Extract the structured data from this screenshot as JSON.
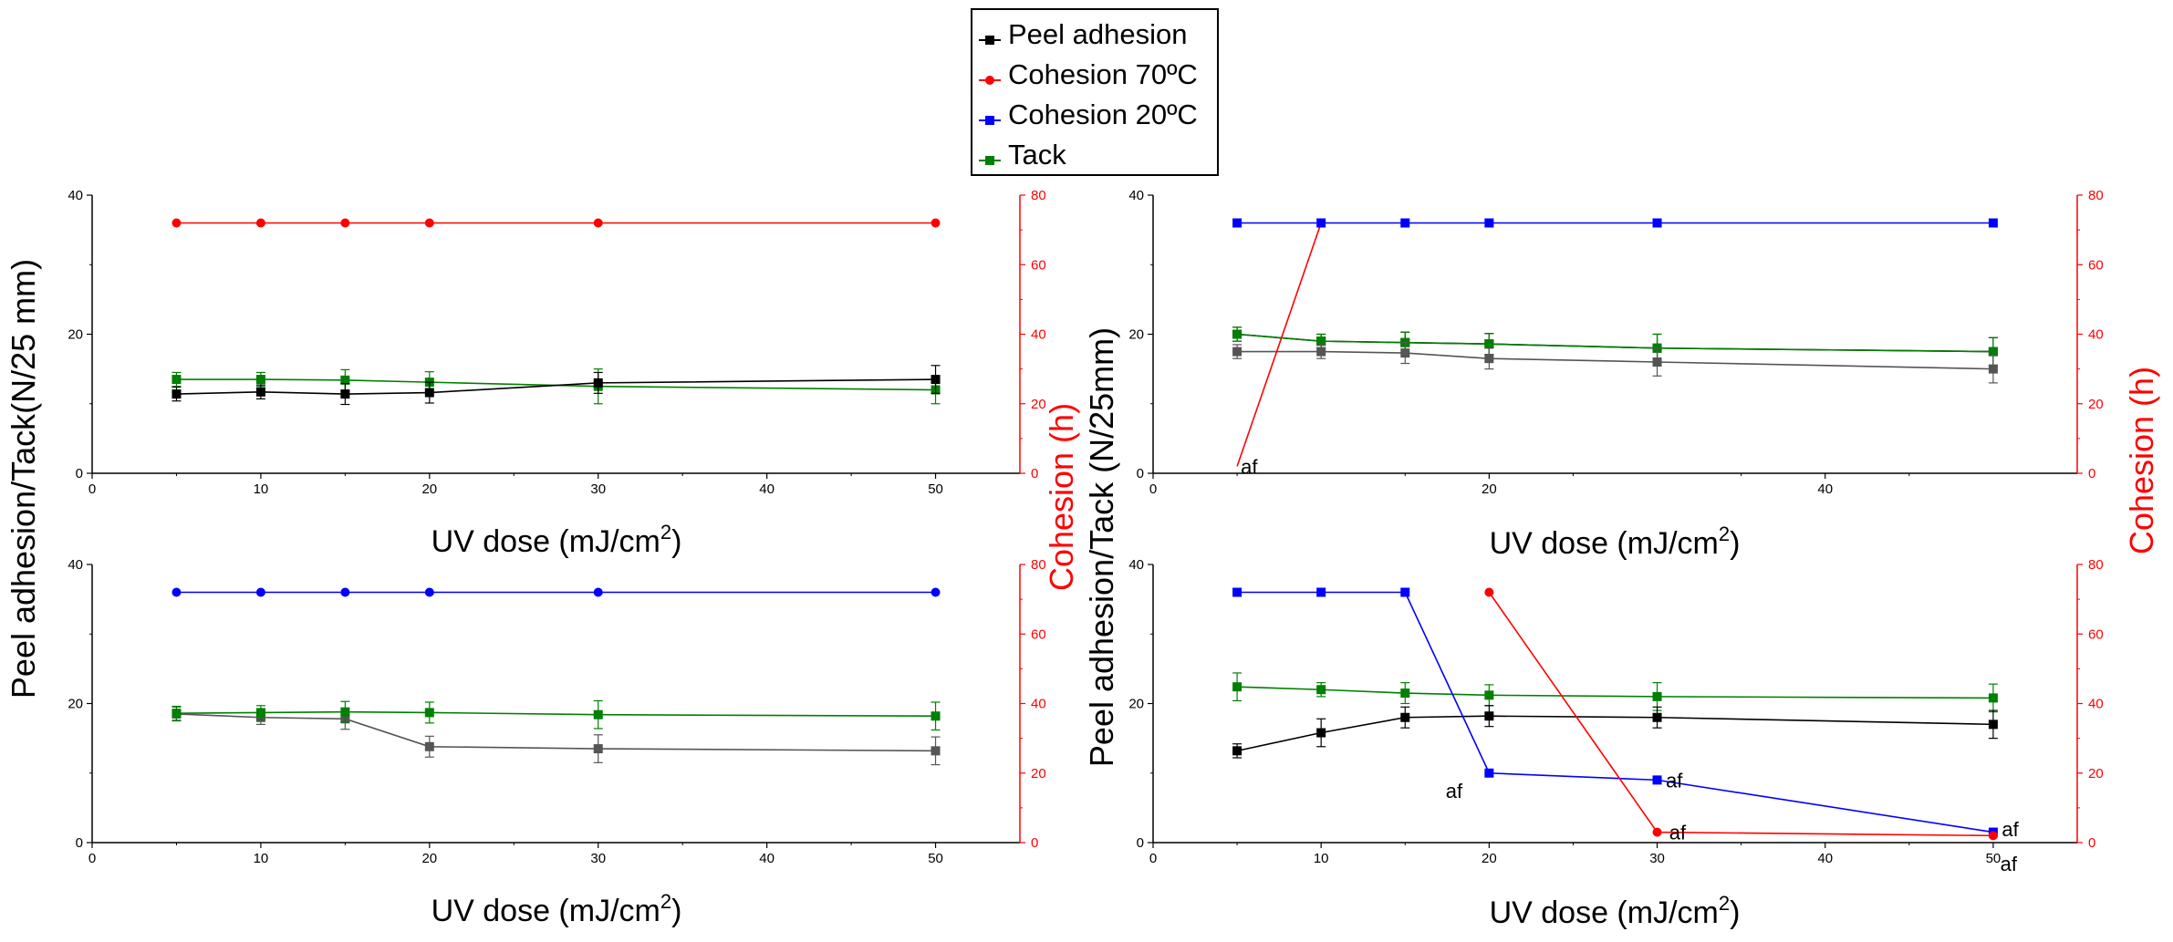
{
  "colors": {
    "peel": "#000000",
    "cohesion70": "#ff0000",
    "cohesion20": "#0000ff",
    "tack": "#008000",
    "grey": "#555555",
    "axis": "#000000",
    "right_axis": "#ff0000"
  },
  "legend": {
    "items": [
      {
        "label": "Peel adhesion",
        "color": "#000000"
      },
      {
        "label": "Cohesion 70ºC",
        "color": "#ff0000"
      },
      {
        "label": "Cohesion 20ºC",
        "color": "#0000ff"
      },
      {
        "label": "Tack",
        "color": "#008000"
      }
    ]
  },
  "labels": {
    "ylabel_left_top": "Peel adhesion/Tack(N/25 mm)",
    "ylabel_left_bottom": "Peel adhesion/Tack (N/25mm)",
    "ylabel_right_top": "Cohesion (h)",
    "ylabel_right_bottom": "Cohesion (h)",
    "xlabel_prefix": "UV dose (mJ/cm",
    "xlabel_sup": "2",
    "xlabel_suffix": ")"
  },
  "chart_data": [
    {
      "type": "line",
      "panel": "top-left",
      "xlabel": "UV dose (mJ/cm2)",
      "xlim": [
        0,
        55
      ],
      "xticks": [
        0,
        10,
        20,
        30,
        40,
        50
      ],
      "ylim": [
        0,
        40
      ],
      "yticks": [
        0,
        20,
        40
      ],
      "ylim_right": [
        0,
        80
      ],
      "yticks_right": [
        0,
        20,
        40,
        60,
        80
      ],
      "series": [
        {
          "name": "Tack",
          "color": "#008000",
          "marker": "square",
          "axis": "left",
          "x": [
            5,
            10,
            15,
            20,
            30,
            50
          ],
          "y": [
            13.5,
            13.5,
            13.4,
            13.1,
            12.5,
            12.0
          ],
          "err": [
            1.0,
            1.0,
            1.5,
            1.5,
            2.5,
            2.0
          ]
        },
        {
          "name": "Peel adhesion",
          "color": "#000000",
          "marker": "square",
          "axis": "left",
          "x": [
            5,
            10,
            15,
            20,
            30,
            50
          ],
          "y": [
            11.4,
            11.7,
            11.4,
            11.6,
            13.0,
            13.5
          ],
          "err": [
            1.0,
            1.0,
            1.5,
            1.5,
            1.5,
            2.0
          ]
        },
        {
          "name": "Cohesion 70ºC",
          "color": "#ff0000",
          "marker": "circle",
          "axis": "right",
          "x": [
            5,
            10,
            15,
            20,
            30,
            50
          ],
          "y": [
            72,
            72,
            72,
            72,
            72,
            72
          ]
        }
      ],
      "annotations": []
    },
    {
      "type": "line",
      "panel": "top-right",
      "xlabel": "UV dose (mJ/cm2)",
      "xlim": [
        0,
        55
      ],
      "xticks": [
        0,
        20,
        40
      ],
      "ylim": [
        0,
        40
      ],
      "yticks": [
        0,
        20,
        40
      ],
      "ylim_right": [
        0,
        80
      ],
      "yticks_right": [
        0,
        20,
        40,
        60,
        80
      ],
      "series": [
        {
          "name": "Peel adhesion",
          "color": "#000000",
          "marker": "square",
          "axis": "left",
          "x": [
            5,
            10,
            15,
            20,
            30,
            50
          ],
          "y": [
            20.0,
            19.0,
            18.8,
            18.6,
            18.0,
            17.5
          ],
          "err": [
            1.0,
            1.0,
            1.5,
            1.5,
            2.0,
            2.0
          ]
        },
        {
          "name": "Tack",
          "color": "#008000",
          "marker": "square",
          "axis": "left",
          "x": [
            5,
            10,
            15,
            20,
            30,
            50
          ],
          "y": [
            20.0,
            19.0,
            18.8,
            18.6,
            18.0,
            17.5
          ],
          "err": [
            1.0,
            1.0,
            1.5,
            1.5,
            2.0,
            2.0
          ]
        },
        {
          "name": "Peel adhesion (grey)",
          "color": "#555555",
          "marker": "square",
          "axis": "left",
          "x": [
            5,
            10,
            15,
            20,
            30,
            50
          ],
          "y": [
            17.5,
            17.5,
            17.3,
            16.5,
            16.0,
            15.0
          ],
          "err": [
            1.0,
            1.0,
            1.5,
            1.5,
            2.0,
            2.0
          ]
        },
        {
          "name": "Cohesion 70ºC",
          "color": "#ff0000",
          "marker": "none",
          "axis": "right",
          "x": [
            5,
            10
          ],
          "y": [
            2,
            72
          ]
        },
        {
          "name": "Cohesion 20ºC",
          "color": "#0000ff",
          "marker": "square",
          "axis": "right",
          "x": [
            5,
            10,
            15,
            20,
            30,
            50
          ],
          "y": [
            72,
            72,
            72,
            72,
            72,
            72
          ]
        }
      ],
      "annotations": [
        {
          "text": "af",
          "x": 5,
          "y": 2,
          "axis": "right"
        }
      ]
    },
    {
      "type": "line",
      "panel": "bottom-left",
      "xlabel": "UV dose (mJ/cm2)",
      "xlim": [
        0,
        55
      ],
      "xticks": [
        0,
        10,
        20,
        30,
        40,
        50
      ],
      "ylim": [
        0,
        40
      ],
      "yticks": [
        0,
        20,
        40
      ],
      "ylim_right": [
        0,
        80
      ],
      "yticks_right": [
        0,
        20,
        40,
        60,
        80
      ],
      "series": [
        {
          "name": "Peel adhesion",
          "color": "#555555",
          "marker": "square",
          "axis": "left",
          "x": [
            5,
            10,
            15,
            20,
            30,
            50
          ],
          "y": [
            18.5,
            18.0,
            17.8,
            13.8,
            13.5,
            13.2
          ],
          "err": [
            1.0,
            1.0,
            1.5,
            1.5,
            2.0,
            2.0
          ]
        },
        {
          "name": "Tack",
          "color": "#008000",
          "marker": "square",
          "axis": "left",
          "x": [
            5,
            10,
            15,
            20,
            30,
            50
          ],
          "y": [
            18.6,
            18.7,
            18.8,
            18.7,
            18.4,
            18.2
          ],
          "err": [
            1.0,
            1.0,
            1.5,
            1.5,
            2.0,
            2.0
          ]
        },
        {
          "name": "Cohesion 20ºC",
          "color": "#0000ff",
          "marker": "circle",
          "axis": "right",
          "x": [
            5,
            10,
            15,
            20,
            30,
            50
          ],
          "y": [
            72,
            72,
            72,
            72,
            72,
            72
          ]
        }
      ],
      "annotations": []
    },
    {
      "type": "line",
      "panel": "bottom-right",
      "xlabel": "UV dose (mJ/cm2)",
      "xlim": [
        0,
        55
      ],
      "xticks": [
        0,
        10,
        20,
        30,
        40,
        50
      ],
      "ylim": [
        0,
        40
      ],
      "yticks": [
        0,
        20,
        40
      ],
      "ylim_right": [
        0,
        80
      ],
      "yticks_right": [
        0,
        20,
        40,
        60,
        80
      ],
      "series": [
        {
          "name": "Tack",
          "color": "#008000",
          "marker": "square",
          "axis": "left",
          "x": [
            5,
            10,
            15,
            20,
            30,
            50
          ],
          "y": [
            22.4,
            22.0,
            21.5,
            21.2,
            21.0,
            20.8
          ],
          "err": [
            2.0,
            1.0,
            1.5,
            1.5,
            2.0,
            2.0
          ]
        },
        {
          "name": "Peel adhesion",
          "color": "#000000",
          "marker": "square",
          "axis": "left",
          "x": [
            5,
            10,
            15,
            20,
            30,
            50
          ],
          "y": [
            13.2,
            15.8,
            18.0,
            18.2,
            18.0,
            17.0
          ],
          "err": [
            1.0,
            2.0,
            1.5,
            1.5,
            1.5,
            2.0
          ]
        },
        {
          "name": "Cohesion 20ºC",
          "color": "#0000ff",
          "marker": "square",
          "axis": "right",
          "x": [
            5,
            10,
            15,
            20,
            30,
            50
          ],
          "y": [
            72,
            72,
            72,
            20,
            18,
            3
          ]
        },
        {
          "name": "Cohesion 70ºC",
          "color": "#ff0000",
          "marker": "circle",
          "axis": "right",
          "x": [
            20,
            30,
            50
          ],
          "y": [
            72,
            3,
            2
          ]
        }
      ],
      "annotations": [
        {
          "text": "af",
          "x": 17.2,
          "y": 15,
          "axis": "right"
        },
        {
          "text": "af",
          "x": 30.3,
          "y": 18,
          "axis": "right"
        },
        {
          "text": "af",
          "x": 30.5,
          "y": 3,
          "axis": "right"
        },
        {
          "text": "af",
          "x": 50.3,
          "y": 4,
          "axis": "right"
        },
        {
          "text": "af",
          "x": 50.2,
          "y": -6,
          "axis": "right"
        }
      ]
    }
  ]
}
